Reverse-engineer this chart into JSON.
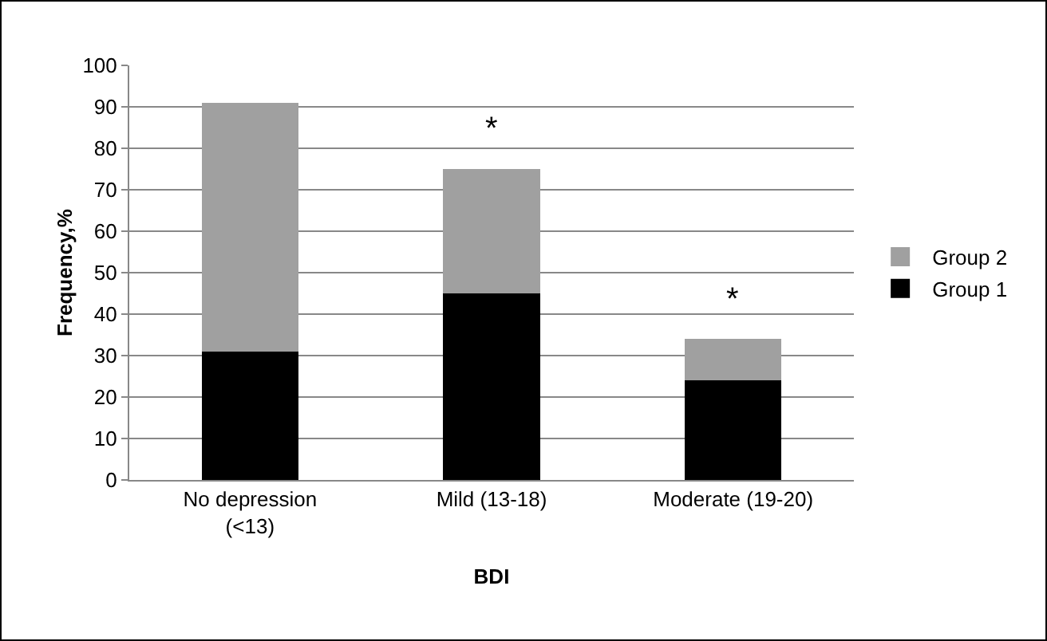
{
  "chart_data": {
    "type": "bar",
    "stacked": true,
    "xlabel": "BDI",
    "ylabel": "Frequency,%",
    "categories": [
      "No depression (<13)",
      "Mild (13-18)",
      "Moderate (19-20)"
    ],
    "series": [
      {
        "name": "Group 1",
        "color": "#000000",
        "values": [
          31,
          45,
          24
        ]
      },
      {
        "name": "Group 2",
        "color": "#a0a0a0",
        "values": [
          60,
          30,
          10
        ]
      }
    ],
    "ylim": [
      0,
      100
    ],
    "yticks": [
      0,
      10,
      20,
      30,
      40,
      50,
      60,
      70,
      80,
      90,
      100
    ],
    "grid": "y",
    "legend": "right",
    "annotations": [
      "*",
      "*"
    ]
  }
}
